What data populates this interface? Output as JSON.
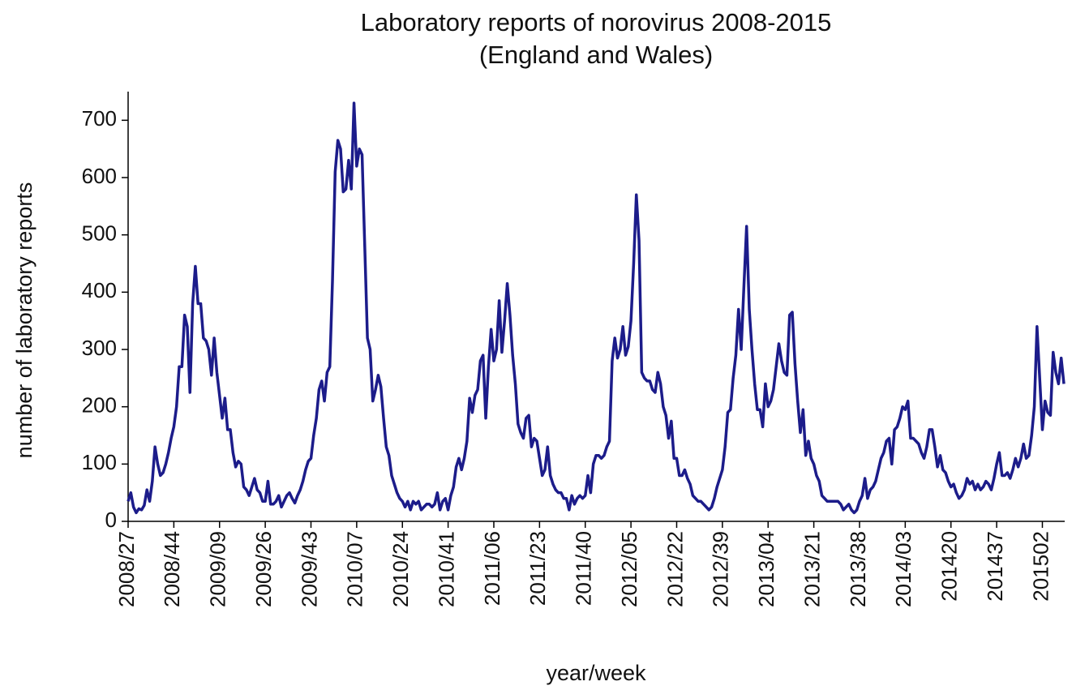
{
  "chart_data": {
    "type": "line",
    "title": "Laboratory reports of norovirus 2008-2015",
    "subtitle": "(England and Wales)",
    "y_label": "number of laboratory reports",
    "x_label": "year/week",
    "color": "#1c1c8a",
    "ylim": [
      0,
      750
    ],
    "yticks": [
      0,
      100,
      200,
      300,
      400,
      500,
      600,
      700
    ],
    "categories": [
      "2008/27",
      null,
      null,
      null,
      null,
      null,
      null,
      null,
      null,
      null,
      null,
      null,
      null,
      null,
      null,
      null,
      null,
      "2008/44",
      null,
      null,
      null,
      null,
      null,
      null,
      null,
      null,
      null,
      null,
      null,
      null,
      null,
      null,
      null,
      null,
      "2009/09",
      null,
      null,
      null,
      null,
      null,
      null,
      null,
      null,
      null,
      null,
      null,
      null,
      null,
      null,
      null,
      null,
      "2009/26",
      null,
      null,
      null,
      null,
      null,
      null,
      null,
      null,
      null,
      null,
      null,
      null,
      null,
      null,
      null,
      null,
      "2009/43",
      null,
      null,
      null,
      null,
      null,
      null,
      null,
      null,
      null,
      null,
      null,
      null,
      null,
      null,
      null,
      null,
      "2010/07",
      null,
      null,
      null,
      null,
      null,
      null,
      null,
      null,
      null,
      null,
      null,
      null,
      null,
      null,
      null,
      null,
      "2010/24",
      null,
      null,
      null,
      null,
      null,
      null,
      null,
      null,
      null,
      null,
      null,
      null,
      null,
      null,
      null,
      null,
      "2010/41",
      null,
      null,
      null,
      null,
      null,
      null,
      null,
      null,
      null,
      null,
      null,
      null,
      null,
      null,
      null,
      null,
      "2011/06",
      null,
      null,
      null,
      null,
      null,
      null,
      null,
      null,
      null,
      null,
      null,
      null,
      null,
      null,
      null,
      null,
      "2011/23",
      null,
      null,
      null,
      null,
      null,
      null,
      null,
      null,
      null,
      null,
      null,
      null,
      null,
      null,
      null,
      null,
      "2011/40",
      null,
      null,
      null,
      null,
      null,
      null,
      null,
      null,
      null,
      null,
      null,
      null,
      null,
      null,
      null,
      null,
      "2012/05",
      null,
      null,
      null,
      null,
      null,
      null,
      null,
      null,
      null,
      null,
      null,
      null,
      null,
      null,
      null,
      null,
      "2012/22",
      null,
      null,
      null,
      null,
      null,
      null,
      null,
      null,
      null,
      null,
      null,
      null,
      null,
      null,
      null,
      null,
      "2012/39",
      null,
      null,
      null,
      null,
      null,
      null,
      null,
      null,
      null,
      null,
      null,
      null,
      null,
      null,
      null,
      null,
      "2013/04",
      null,
      null,
      null,
      null,
      null,
      null,
      null,
      null,
      null,
      null,
      null,
      null,
      null,
      null,
      null,
      null,
      "2013/21",
      null,
      null,
      null,
      null,
      null,
      null,
      null,
      null,
      null,
      null,
      null,
      null,
      null,
      null,
      null,
      null,
      "2013/38",
      null,
      null,
      null,
      null,
      null,
      null,
      null,
      null,
      null,
      null,
      null,
      null,
      null,
      null,
      null,
      null,
      "2014/03",
      null,
      null,
      null,
      null,
      null,
      null,
      null,
      null,
      null,
      null,
      null,
      null,
      null,
      null,
      null,
      null,
      "201420",
      null,
      null,
      null,
      null,
      null,
      null,
      null,
      null,
      null,
      null,
      null,
      null,
      null,
      null,
      null,
      null,
      "201437",
      null,
      null,
      null,
      null,
      null,
      null,
      null,
      null,
      null,
      null,
      null,
      null,
      null,
      null,
      null,
      null,
      "201502",
      null,
      null,
      null,
      null,
      null,
      null,
      null,
      null
    ],
    "values": [
      35,
      50,
      25,
      15,
      22,
      20,
      28,
      55,
      35,
      70,
      130,
      100,
      80,
      85,
      100,
      120,
      145,
      165,
      200,
      270,
      270,
      360,
      340,
      225,
      380,
      445,
      380,
      380,
      320,
      315,
      300,
      255,
      320,
      260,
      220,
      180,
      215,
      160,
      160,
      120,
      95,
      105,
      100,
      60,
      55,
      45,
      60,
      75,
      55,
      50,
      35,
      35,
      70,
      30,
      30,
      35,
      45,
      25,
      35,
      45,
      50,
      40,
      32,
      45,
      55,
      70,
      90,
      105,
      110,
      150,
      180,
      230,
      245,
      210,
      260,
      270,
      420,
      610,
      665,
      650,
      575,
      580,
      630,
      580,
      730,
      620,
      650,
      640,
      480,
      320,
      300,
      210,
      230,
      255,
      235,
      180,
      130,
      115,
      80,
      65,
      50,
      40,
      35,
      25,
      35,
      20,
      35,
      30,
      35,
      20,
      25,
      30,
      30,
      25,
      30,
      50,
      20,
      35,
      40,
      20,
      45,
      60,
      95,
      110,
      90,
      110,
      140,
      215,
      190,
      220,
      230,
      280,
      290,
      180,
      270,
      335,
      280,
      300,
      385,
      295,
      350,
      415,
      360,
      290,
      240,
      170,
      155,
      145,
      180,
      185,
      130,
      145,
      140,
      110,
      80,
      90,
      130,
      80,
      65,
      55,
      50,
      50,
      40,
      40,
      20,
      45,
      30,
      40,
      45,
      40,
      45,
      80,
      50,
      100,
      115,
      115,
      110,
      115,
      130,
      140,
      280,
      320,
      285,
      300,
      340,
      290,
      305,
      350,
      450,
      570,
      490,
      260,
      250,
      245,
      245,
      230,
      225,
      260,
      240,
      200,
      185,
      145,
      175,
      110,
      110,
      80,
      80,
      90,
      75,
      65,
      45,
      40,
      35,
      35,
      30,
      25,
      20,
      25,
      40,
      60,
      75,
      90,
      130,
      190,
      195,
      250,
      290,
      370,
      300,
      410,
      515,
      370,
      300,
      240,
      195,
      195,
      165,
      240,
      200,
      210,
      230,
      270,
      310,
      280,
      260,
      255,
      360,
      365,
      275,
      210,
      155,
      195,
      115,
      140,
      110,
      100,
      80,
      70,
      45,
      40,
      35,
      35,
      35,
      35,
      35,
      30,
      20,
      25,
      30,
      20,
      15,
      20,
      35,
      45,
      75,
      40,
      55,
      60,
      70,
      90,
      110,
      120,
      140,
      145,
      100,
      160,
      165,
      180,
      200,
      195,
      210,
      145,
      145,
      140,
      135,
      120,
      110,
      130,
      160,
      160,
      130,
      95,
      115,
      90,
      85,
      70,
      60,
      65,
      50,
      40,
      45,
      55,
      75,
      65,
      70,
      55,
      65,
      55,
      60,
      70,
      65,
      55,
      75,
      100,
      120,
      80,
      80,
      85,
      75,
      90,
      110,
      95,
      110,
      135,
      110,
      115,
      150,
      200,
      340,
      250,
      160,
      210,
      190,
      185,
      295,
      260,
      240,
      285,
      240
    ]
  }
}
